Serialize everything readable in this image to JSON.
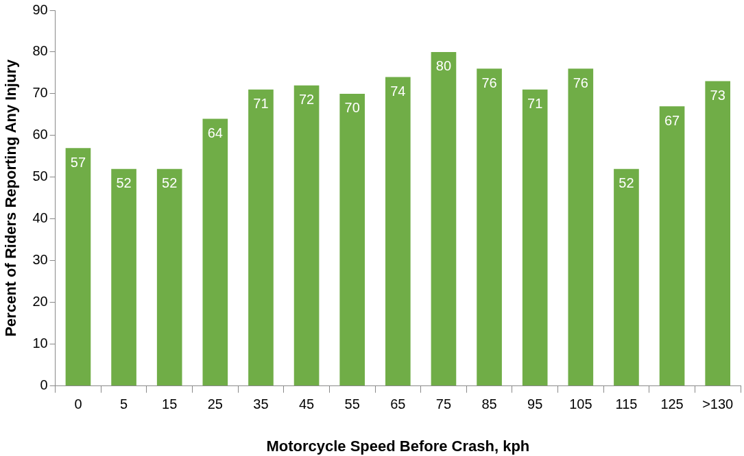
{
  "chart_data": {
    "type": "bar",
    "xlabel": "Motorcycle Speed Before Crash, kph",
    "ylabel": "Percent of Riders Reporting Any Injury",
    "categories": [
      "0",
      "5",
      "15",
      "25",
      "35",
      "45",
      "55",
      "65",
      "75",
      "85",
      "95",
      "105",
      "115",
      "125",
      ">130"
    ],
    "values": [
      57,
      52,
      52,
      64,
      71,
      72,
      70,
      74,
      80,
      76,
      71,
      76,
      52,
      67,
      73
    ],
    "color": "#70ad47",
    "ylim": [
      0,
      90
    ],
    "yticks": [
      0,
      10,
      20,
      30,
      40,
      50,
      60,
      70,
      80,
      90
    ],
    "grid": false,
    "legend": false,
    "data_labels": true
  }
}
